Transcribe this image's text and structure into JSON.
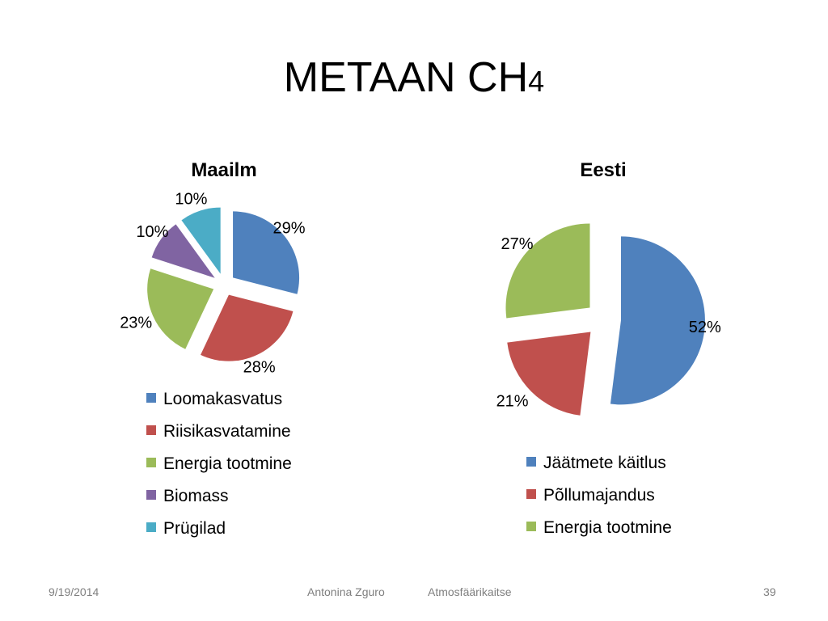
{
  "slide": {
    "title_main": "METAAN CH",
    "title_sub": "4"
  },
  "footer": {
    "date": "9/19/2014",
    "author": "Antonina Zguro",
    "course": "Atmosfäärikaitse",
    "page": "39"
  },
  "chart_data": [
    {
      "type": "pie",
      "title": "Maailm",
      "exploded": true,
      "legend_position": "bottom",
      "categories": [
        "Loomakasvatus",
        "Riisikasvatamine",
        "Energia tootmine",
        "Biomass",
        "Prügilad"
      ],
      "values": [
        29,
        28,
        23,
        10,
        10
      ],
      "labels": [
        "29%",
        "28%",
        "23%",
        "10%",
        "10%"
      ],
      "colors": [
        "#4f81bd",
        "#c0504d",
        "#9bbb59",
        "#8064a2",
        "#4bacc6"
      ]
    },
    {
      "type": "pie",
      "title": "Eesti",
      "exploded": true,
      "legend_position": "bottom",
      "categories": [
        "Jäätmete käitlus",
        "Põllumajandus",
        "Energia tootmine"
      ],
      "values": [
        52,
        21,
        27
      ],
      "labels": [
        "52%",
        "21%",
        "27%"
      ],
      "colors": [
        "#4f81bd",
        "#c0504d",
        "#9bbb59"
      ]
    }
  ]
}
